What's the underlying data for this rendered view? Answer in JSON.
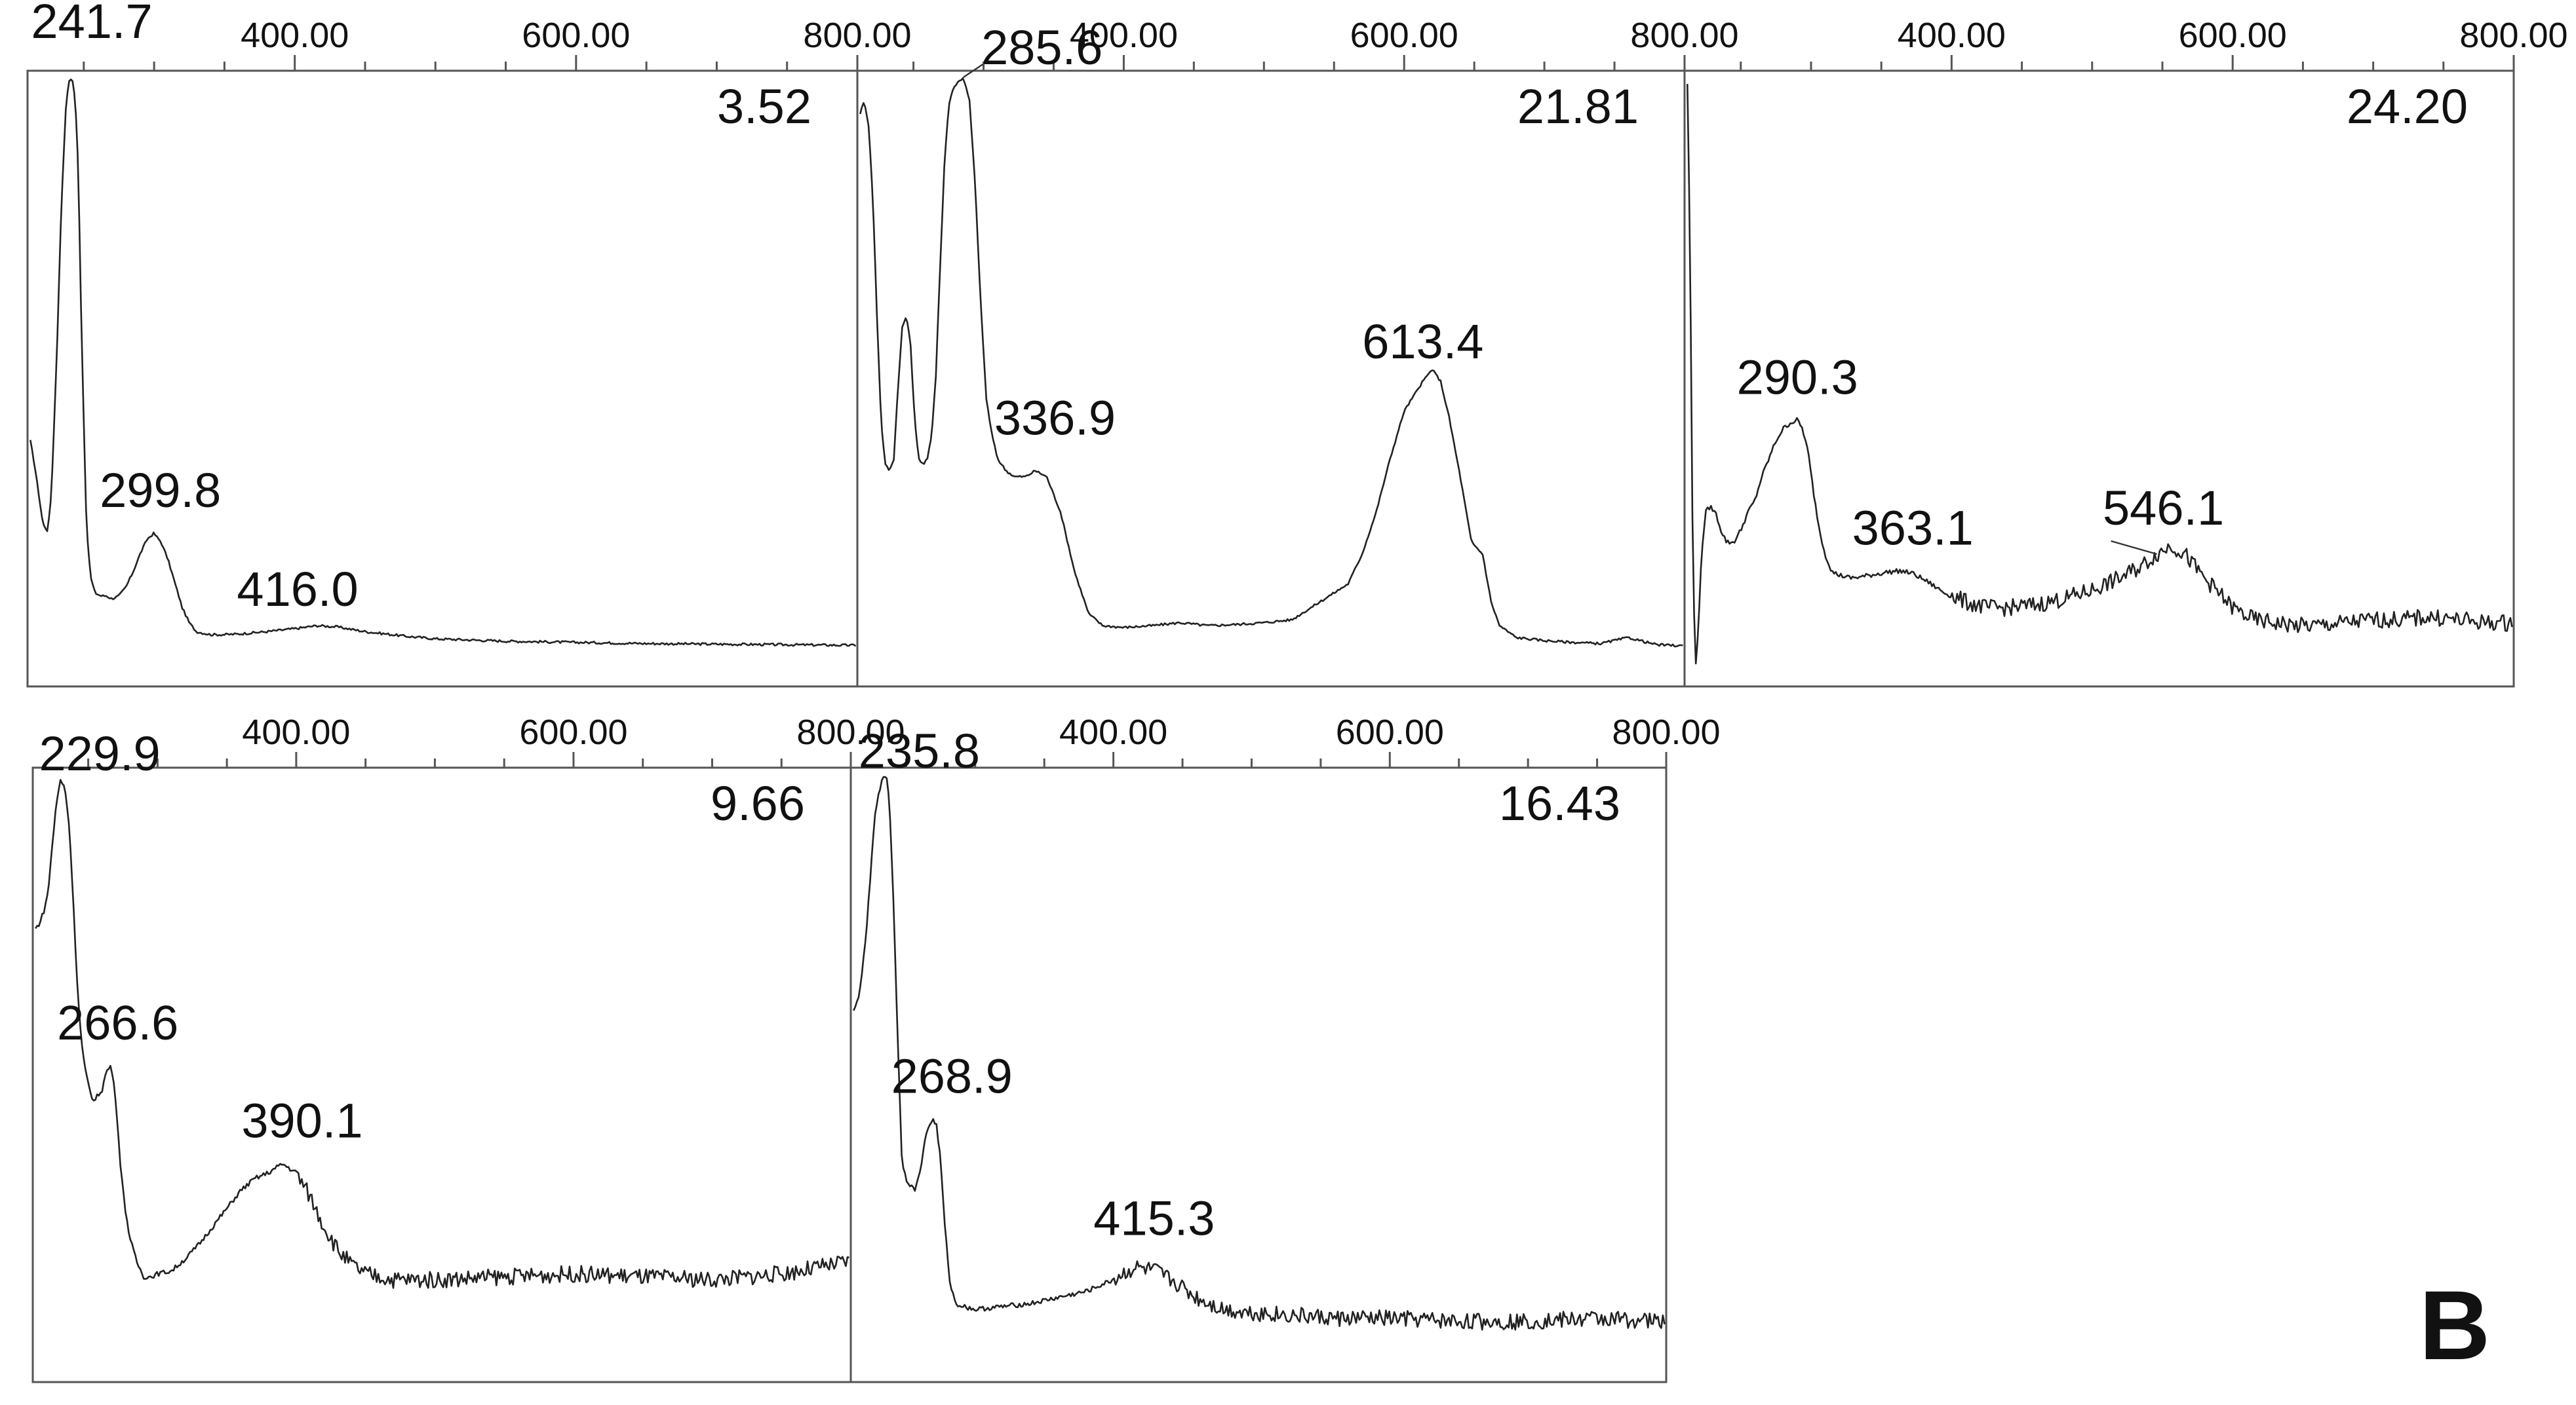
{
  "figure_label": "B",
  "chart_data": [
    {
      "type": "line",
      "retention_time": "3.52",
      "x_ticks": [
        "400.00",
        "600.00",
        "800.00"
      ],
      "xlim": [
        210,
        800
      ],
      "peak_labels": [
        "241.7",
        "299.8",
        "416.0"
      ],
      "series": [
        {
          "x": [
            212,
            215,
            218,
            221,
            224,
            226,
            228,
            231,
            234,
            237,
            239,
            241.7,
            244,
            246,
            248,
            250,
            252,
            255,
            258,
            262,
            266,
            270,
            275,
            280,
            285,
            290,
            295,
            299.8,
            305,
            310,
            315,
            320,
            325,
            330,
            340,
            350,
            360,
            380,
            400,
            416,
            430,
            450,
            480,
            500,
            550,
            600,
            650,
            700,
            750,
            800
          ],
          "y": [
            0.39,
            0.35,
            0.3,
            0.25,
            0.24,
            0.27,
            0.36,
            0.55,
            0.78,
            0.94,
            0.99,
            1.0,
            0.96,
            0.85,
            0.62,
            0.42,
            0.24,
            0.16,
            0.135,
            0.13,
            0.13,
            0.125,
            0.13,
            0.145,
            0.17,
            0.2,
            0.225,
            0.235,
            0.22,
            0.19,
            0.15,
            0.11,
            0.085,
            0.07,
            0.065,
            0.065,
            0.066,
            0.07,
            0.075,
            0.08,
            0.078,
            0.07,
            0.062,
            0.058,
            0.054,
            0.052,
            0.05,
            0.049,
            0.048,
            0.047
          ]
        }
      ]
    },
    {
      "type": "line",
      "retention_time": "21.81",
      "x_ticks": [
        "400.00",
        "600.00",
        "800.00"
      ],
      "xlim": [
        210,
        800
      ],
      "peak_labels": [
        "285.6",
        "336.9",
        "613.4"
      ],
      "series": [
        {
          "x": [
            212,
            215,
            218,
            221,
            224,
            227,
            230,
            233,
            236,
            239,
            242,
            245,
            248,
            251,
            254,
            257,
            260,
            263,
            266,
            269,
            272,
            275,
            278,
            281,
            285.6,
            290,
            294,
            298,
            302,
            306,
            310,
            316,
            322,
            330,
            336.9,
            345,
            355,
            365,
            375,
            385,
            400,
            420,
            440,
            460,
            480,
            500,
            520,
            540,
            560,
            570,
            580,
            590,
            600,
            613.4,
            620,
            626,
            632,
            640,
            648,
            656,
            662,
            668,
            680,
            700,
            720,
            740,
            760,
            780,
            800
          ],
          "y": [
            0.94,
            0.96,
            0.92,
            0.8,
            0.6,
            0.42,
            0.35,
            0.34,
            0.36,
            0.48,
            0.58,
            0.6,
            0.55,
            0.42,
            0.36,
            0.35,
            0.36,
            0.4,
            0.5,
            0.68,
            0.85,
            0.95,
            0.98,
            0.99,
            1.0,
            0.96,
            0.82,
            0.62,
            0.46,
            0.4,
            0.36,
            0.34,
            0.33,
            0.33,
            0.34,
            0.33,
            0.27,
            0.17,
            0.1,
            0.08,
            0.077,
            0.08,
            0.085,
            0.08,
            0.082,
            0.085,
            0.09,
            0.12,
            0.15,
            0.2,
            0.27,
            0.36,
            0.44,
            0.49,
            0.51,
            0.49,
            0.43,
            0.33,
            0.22,
            0.2,
            0.12,
            0.08,
            0.06,
            0.055,
            0.052,
            0.05,
            0.06,
            0.048,
            0.046
          ]
        }
      ]
    },
    {
      "type": "line",
      "retention_time": "24.20",
      "x_ticks": [
        "400.00",
        "600.00",
        "800.00"
      ],
      "xlim": [
        210,
        800
      ],
      "peak_labels": [
        "290.3",
        "363.1",
        "546.1"
      ],
      "series": [
        {
          "x": [
            212,
            214,
            216,
            218,
            220,
            222,
            225,
            228,
            232,
            236,
            240,
            245,
            250,
            255,
            260,
            265,
            270,
            275,
            280,
            285,
            290.3,
            294,
            298,
            302,
            306,
            310,
            315,
            320,
            328,
            336,
            345,
            355,
            363.1,
            372,
            382,
            395,
            410,
            425,
            440,
            460,
            480,
            500,
            520,
            535,
            546.1,
            556,
            566,
            576,
            588,
            600,
            615,
            630,
            645,
            660,
            680,
            700,
            720,
            740,
            760,
            780,
            800
          ],
          "y": [
            0.99,
            0.7,
            0.15,
            0.02,
            0.08,
            0.2,
            0.27,
            0.28,
            0.27,
            0.24,
            0.22,
            0.22,
            0.24,
            0.27,
            0.29,
            0.33,
            0.36,
            0.39,
            0.41,
            0.42,
            0.425,
            0.41,
            0.37,
            0.3,
            0.24,
            0.2,
            0.17,
            0.165,
            0.16,
            0.162,
            0.166,
            0.17,
            0.172,
            0.168,
            0.155,
            0.135,
            0.12,
            0.11,
            0.11,
            0.115,
            0.125,
            0.14,
            0.16,
            0.18,
            0.2,
            0.215,
            0.2,
            0.17,
            0.14,
            0.11,
            0.09,
            0.085,
            0.08,
            0.08,
            0.085,
            0.09,
            0.09,
            0.095,
            0.09,
            0.085,
            0.085
          ]
        }
      ]
    },
    {
      "type": "line",
      "retention_time": "9.66",
      "x_ticks": [
        "400.00",
        "600.00",
        "800.00"
      ],
      "xlim": [
        210,
        800
      ],
      "peak_labels": [
        "229.9",
        "266.6",
        "390.1"
      ],
      "series": [
        {
          "x": [
            212,
            215,
            218,
            221,
            224,
            227,
            229.9,
            233,
            236,
            239,
            242,
            245,
            248,
            251,
            254,
            257,
            260,
            263,
            266.6,
            270,
            273,
            276,
            280,
            285,
            290,
            295,
            300,
            310,
            320,
            330,
            340,
            350,
            360,
            370,
            380,
            390.1,
            400,
            410,
            420,
            430,
            440,
            450,
            470,
            500,
            550,
            600,
            650,
            700,
            750,
            800
          ],
          "y": [
            0.74,
            0.75,
            0.77,
            0.8,
            0.88,
            0.95,
            0.99,
            0.98,
            0.92,
            0.8,
            0.65,
            0.55,
            0.5,
            0.47,
            0.45,
            0.46,
            0.47,
            0.5,
            0.51,
            0.45,
            0.35,
            0.28,
            0.22,
            0.18,
            0.155,
            0.155,
            0.16,
            0.165,
            0.185,
            0.21,
            0.24,
            0.27,
            0.3,
            0.32,
            0.33,
            0.345,
            0.33,
            0.29,
            0.24,
            0.2,
            0.175,
            0.16,
            0.15,
            0.15,
            0.155,
            0.16,
            0.155,
            0.15,
            0.16,
            0.18
          ]
        }
      ]
    },
    {
      "type": "line",
      "retention_time": "16.43",
      "x_ticks": [
        "400.00",
        "600.00",
        "800.00"
      ],
      "xlim": [
        210,
        800
      ],
      "peak_labels": [
        "235.8",
        "268.9",
        "415.3"
      ],
      "series": [
        {
          "x": [
            212,
            215,
            218,
            221,
            224,
            227,
            230,
            233,
            235.8,
            238,
            241,
            244,
            247,
            250,
            253,
            256,
            259,
            262,
            265,
            268.9,
            272,
            275,
            278,
            282,
            286,
            292,
            300,
            320,
            340,
            360,
            380,
            400,
            415.3,
            430,
            445,
            460,
            480,
            500,
            530,
            560,
            600,
            650,
            700,
            750,
            800
          ],
          "y": [
            0.6,
            0.62,
            0.66,
            0.73,
            0.82,
            0.92,
            0.97,
            0.99,
            1.0,
            0.95,
            0.78,
            0.55,
            0.35,
            0.32,
            0.31,
            0.3,
            0.32,
            0.36,
            0.4,
            0.42,
            0.41,
            0.35,
            0.24,
            0.14,
            0.11,
            0.105,
            0.1,
            0.105,
            0.11,
            0.12,
            0.13,
            0.15,
            0.17,
            0.165,
            0.145,
            0.12,
            0.1,
            0.095,
            0.09,
            0.085,
            0.085,
            0.08,
            0.08,
            0.085,
            0.08
          ]
        }
      ]
    }
  ]
}
